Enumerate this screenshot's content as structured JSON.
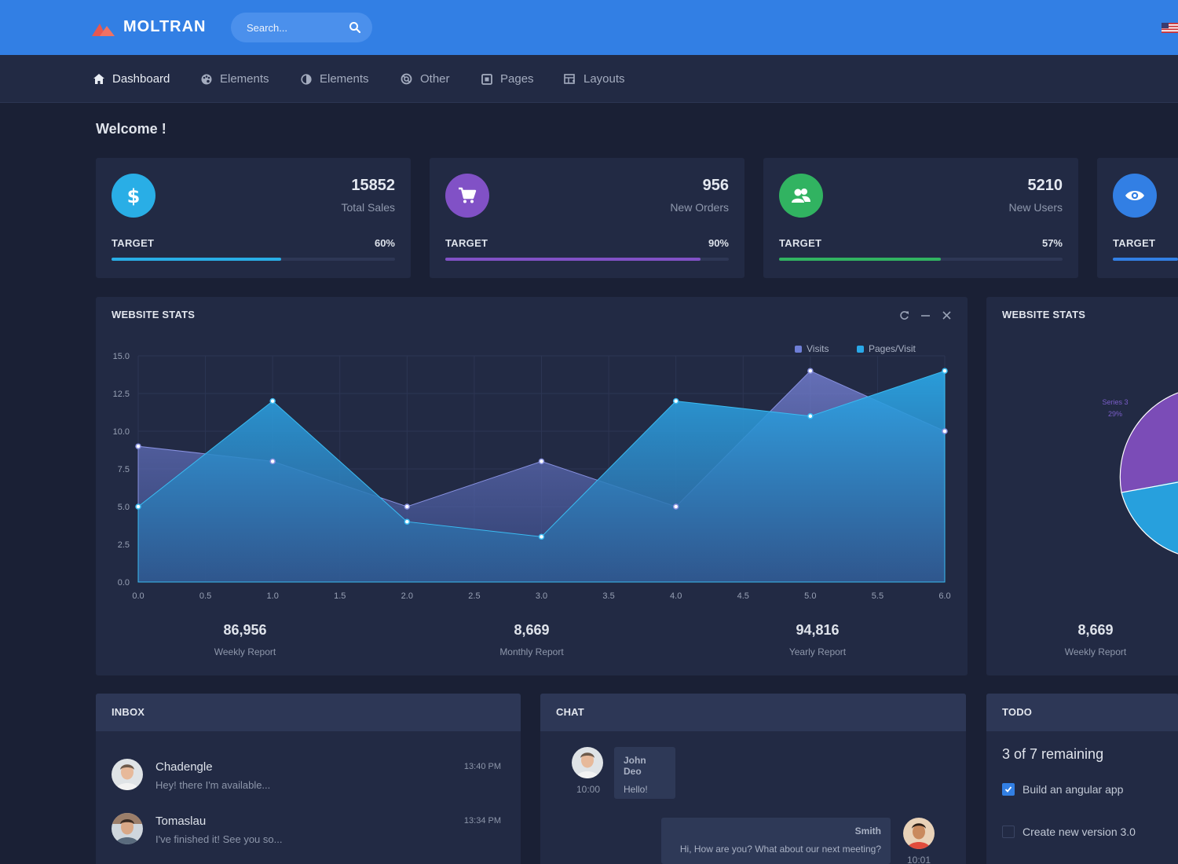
{
  "brand": {
    "name": "MOLTRAN"
  },
  "search": {
    "placeholder": "Search..."
  },
  "nav": [
    {
      "label": "Dashboard",
      "icon": "home-icon"
    },
    {
      "label": "Elements",
      "icon": "palette-icon"
    },
    {
      "label": "Elements",
      "icon": "contrast-icon"
    },
    {
      "label": "Other",
      "icon": "life-ring-icon"
    },
    {
      "label": "Pages",
      "icon": "pages-icon"
    },
    {
      "label": "Layouts",
      "icon": "layouts-icon"
    }
  ],
  "welcome": "Welcome !",
  "stats": [
    {
      "value": "15852",
      "label": "Total Sales",
      "target": "TARGET",
      "pct": "60%",
      "progress": 0.6,
      "color": "#29aee6",
      "icon": "dollar-icon"
    },
    {
      "value": "956",
      "label": "New Orders",
      "target": "TARGET",
      "pct": "90%",
      "progress": 0.9,
      "color": "#8151c6",
      "icon": "cart-icon"
    },
    {
      "value": "5210",
      "label": "New Users",
      "target": "TARGET",
      "pct": "57%",
      "progress": 0.57,
      "color": "#31b361",
      "icon": "users-icon"
    },
    {
      "value": "",
      "label": "",
      "target": "TARGET",
      "pct": "",
      "progress": 1.0,
      "color": "#327fe4",
      "icon": "eye-icon"
    }
  ],
  "website_stats": {
    "title": "WEBSITE STATS",
    "summaries": [
      {
        "value": "86,956",
        "label": "Weekly Report"
      },
      {
        "value": "8,669",
        "label": "Monthly Report"
      },
      {
        "value": "94,816",
        "label": "Yearly Report"
      }
    ]
  },
  "website_stats_2": {
    "title": "WEBSITE STATS",
    "pie_label": "Series 3",
    "pie_pct": "29%",
    "summary": {
      "value": "8,669",
      "label": "Weekly Report"
    }
  },
  "chart_data": [
    {
      "type": "area",
      "title": "",
      "xlabel": "",
      "ylabel": "",
      "xlim": [
        0,
        6
      ],
      "ylim": [
        0,
        15
      ],
      "xticks": [
        "0.0",
        "0.5",
        "1.0",
        "1.5",
        "2.0",
        "2.5",
        "3.0",
        "3.5",
        "4.0",
        "4.5",
        "5.0",
        "5.5",
        "6.0"
      ],
      "yticks": [
        "0.0",
        "2.5",
        "5.0",
        "7.5",
        "10.0",
        "12.5",
        "15.0"
      ],
      "legend": "top-right",
      "grid": true,
      "x": [
        0,
        1,
        2,
        3,
        4,
        5,
        6
      ],
      "series": [
        {
          "name": "Visits",
          "values": [
            9,
            8,
            5,
            8,
            5,
            14,
            10
          ],
          "color": "#6e7ed6"
        },
        {
          "name": "Pages/Visit",
          "values": [
            5,
            12,
            4,
            3,
            12,
            11,
            14
          ],
          "color": "#29a8e8"
        }
      ]
    },
    {
      "type": "pie",
      "slices": [
        {
          "name": "Series 3",
          "value": 29,
          "color": "#7b4cb7"
        }
      ]
    }
  ],
  "inbox": {
    "title": "INBOX",
    "items": [
      {
        "name": "Chadengle",
        "msg": "Hey! there I'm available...",
        "time": "13:40 PM"
      },
      {
        "name": "Tomaslau",
        "msg": "I've finished it! See you so...",
        "time": "13:34 PM"
      }
    ]
  },
  "chat": {
    "title": "CHAT",
    "messages": [
      {
        "who": "John Deo",
        "text": "Hello!",
        "time": "10:00"
      },
      {
        "who": "Smith",
        "text": "Hi, How are you? What about our next meeting?",
        "time": "10:01"
      }
    ]
  },
  "todo": {
    "title": "TODO",
    "remaining": "3 of 7 remaining",
    "items": [
      {
        "text": "Build an angular app",
        "done": true
      },
      {
        "text": "Create new version 3.0",
        "done": false
      }
    ]
  }
}
